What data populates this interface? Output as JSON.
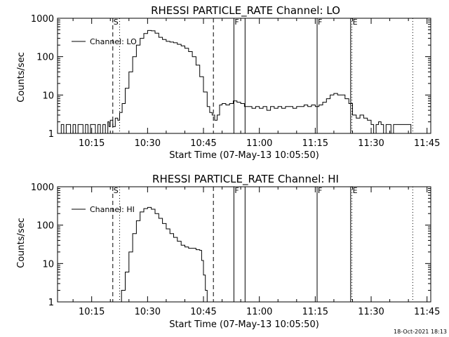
{
  "footer": {
    "timestamp": "18-Oct-2021 18:13"
  },
  "chart_data": [
    {
      "type": "line",
      "title": "RHESSI PARTICLE_RATE Channel: LO",
      "xlabel": "Start Time (07-May-13 10:05:50)",
      "ylabel": "Counts/sec",
      "yscale": "log",
      "xlim": [
        "10:05:50",
        "11:46:00"
      ],
      "ylim": [
        1,
        1000
      ],
      "xticks": [
        "10:15",
        "10:30",
        "10:45",
        "11:00",
        "11:15",
        "11:30",
        "11:45"
      ],
      "yticks": [
        "1",
        "10",
        "100",
        "1000"
      ],
      "legend": {
        "placement": "top-left",
        "entries": [
          "Channel: LO"
        ]
      },
      "markers": [
        {
          "time": "10:20:40",
          "style": "dashed",
          "label": "S"
        },
        {
          "time": "10:22:30",
          "style": "dotted",
          "label": ""
        },
        {
          "time": "10:47:40",
          "style": "dashed",
          "label": ""
        },
        {
          "time": "10:53:10",
          "style": "solid",
          "label": "F"
        },
        {
          "time": "10:56:10",
          "style": "solid",
          "label": ""
        },
        {
          "time": "11:15:30",
          "style": "solid",
          "label": "F"
        },
        {
          "time": "11:24:30",
          "style": "solid",
          "label": ""
        },
        {
          "time": "11:24:50",
          "style": "dotted",
          "label": "E"
        },
        {
          "time": "11:41:10",
          "style": "dotted",
          "label": ""
        }
      ],
      "series": [
        {
          "name": "Channel: LO",
          "points": [
            [
              "10:05:50",
              1
            ],
            [
              "10:06:50",
              1.7
            ],
            [
              "10:07:30",
              1
            ],
            [
              "10:08:10",
              1.7
            ],
            [
              "10:08:50",
              1.7
            ],
            [
              "10:09:20",
              1
            ],
            [
              "10:10:00",
              1.7
            ],
            [
              "10:10:40",
              1
            ],
            [
              "10:11:20",
              1.7
            ],
            [
              "10:12:00",
              1.7
            ],
            [
              "10:12:40",
              1
            ],
            [
              "10:13:20",
              1.7
            ],
            [
              "10:14:00",
              1
            ],
            [
              "10:14:40",
              1.7
            ],
            [
              "10:15:20",
              1.7
            ],
            [
              "10:16:00",
              1
            ],
            [
              "10:16:40",
              1.7
            ],
            [
              "10:17:20",
              1
            ],
            [
              "10:18:00",
              1.7
            ],
            [
              "10:18:40",
              1
            ],
            [
              "10:19:20",
              2
            ],
            [
              "10:19:40",
              1.5
            ],
            [
              "10:20:00",
              2.2
            ],
            [
              "10:20:40",
              1.5
            ],
            [
              "10:21:20",
              2.5
            ],
            [
              "10:22:00",
              2.2
            ],
            [
              "10:22:30",
              3.5
            ],
            [
              "10:23:10",
              6
            ],
            [
              "10:24:00",
              15
            ],
            [
              "10:25:00",
              40
            ],
            [
              "10:26:00",
              100
            ],
            [
              "10:27:00",
              200
            ],
            [
              "10:28:00",
              300
            ],
            [
              "10:29:00",
              400
            ],
            [
              "10:30:00",
              480
            ],
            [
              "10:31:00",
              470
            ],
            [
              "10:32:00",
              410
            ],
            [
              "10:33:00",
              320
            ],
            [
              "10:34:00",
              280
            ],
            [
              "10:35:00",
              250
            ],
            [
              "10:36:00",
              240
            ],
            [
              "10:37:00",
              230
            ],
            [
              "10:38:00",
              210
            ],
            [
              "10:39:00",
              190
            ],
            [
              "10:40:00",
              165
            ],
            [
              "10:41:00",
              135
            ],
            [
              "10:42:00",
              100
            ],
            [
              "10:43:00",
              60
            ],
            [
              "10:44:00",
              30
            ],
            [
              "10:45:00",
              12
            ],
            [
              "10:46:00",
              5
            ],
            [
              "10:46:40",
              3.5
            ],
            [
              "10:47:20",
              3
            ],
            [
              "10:48:00",
              2.2
            ],
            [
              "10:48:40",
              3
            ],
            [
              "10:49:20",
              5.5
            ],
            [
              "10:50:00",
              6
            ],
            [
              "10:51:00",
              5.5
            ],
            [
              "10:52:00",
              6
            ],
            [
              "10:53:00",
              7
            ],
            [
              "10:54:00",
              6.5
            ],
            [
              "10:55:00",
              6
            ],
            [
              "10:56:00",
              5
            ],
            [
              "10:57:00",
              5
            ],
            [
              "10:58:00",
              4.5
            ],
            [
              "10:59:00",
              5
            ],
            [
              "11:00:00",
              4.5
            ],
            [
              "11:01:00",
              5
            ],
            [
              "11:02:00",
              4
            ],
            [
              "11:03:00",
              5
            ],
            [
              "11:04:00",
              4.5
            ],
            [
              "11:05:00",
              5
            ],
            [
              "11:06:00",
              4.5
            ],
            [
              "11:07:00",
              5
            ],
            [
              "11:08:00",
              5
            ],
            [
              "11:09:00",
              4.5
            ],
            [
              "11:10:00",
              5
            ],
            [
              "11:11:00",
              5
            ],
            [
              "11:12:00",
              5.5
            ],
            [
              "11:13:00",
              5
            ],
            [
              "11:14:00",
              5.5
            ],
            [
              "11:15:00",
              5
            ],
            [
              "11:16:00",
              5.5
            ],
            [
              "11:17:00",
              6.5
            ],
            [
              "11:18:00",
              8
            ],
            [
              "11:19:00",
              10
            ],
            [
              "11:20:00",
              11
            ],
            [
              "11:21:00",
              10
            ],
            [
              "11:22:00",
              10
            ],
            [
              "11:23:00",
              8
            ],
            [
              "11:24:00",
              6
            ],
            [
              "11:25:00",
              3
            ],
            [
              "11:26:00",
              2.5
            ],
            [
              "11:27:00",
              3
            ],
            [
              "11:28:00",
              2.5
            ],
            [
              "11:29:00",
              2.2
            ],
            [
              "11:30:00",
              1.7
            ],
            [
              "11:30:40",
              1
            ],
            [
              "11:31:20",
              1.7
            ],
            [
              "11:32:00",
              2
            ],
            [
              "11:32:40",
              1.7
            ],
            [
              "11:33:20",
              1
            ],
            [
              "11:34:00",
              1.7
            ],
            [
              "11:34:40",
              1.7
            ],
            [
              "11:35:20",
              1
            ],
            [
              "11:36:00",
              1.7
            ],
            [
              "11:36:40",
              1.7
            ],
            [
              "11:37:20",
              1.7
            ],
            [
              "11:38:00",
              1.7
            ],
            [
              "11:38:40",
              1.7
            ],
            [
              "11:39:20",
              1.7
            ],
            [
              "11:40:00",
              1.7
            ],
            [
              "11:40:40",
              1
            ]
          ]
        }
      ]
    },
    {
      "type": "line",
      "title": "RHESSI PARTICLE_RATE Channel: HI",
      "xlabel": "Start Time (07-May-13 10:05:50)",
      "ylabel": "Counts/sec",
      "yscale": "log",
      "xlim": [
        "10:05:50",
        "11:46:00"
      ],
      "ylim": [
        1,
        1000
      ],
      "xticks": [
        "10:15",
        "10:30",
        "10:45",
        "11:00",
        "11:15",
        "11:30",
        "11:45"
      ],
      "yticks": [
        "1",
        "10",
        "100",
        "1000"
      ],
      "legend": {
        "placement": "top-left",
        "entries": [
          "Channel: HI"
        ]
      },
      "markers": [
        {
          "time": "10:20:40",
          "style": "dashed",
          "label": "S"
        },
        {
          "time": "10:22:30",
          "style": "dotted",
          "label": ""
        },
        {
          "time": "10:47:40",
          "style": "dashed",
          "label": ""
        },
        {
          "time": "10:53:10",
          "style": "solid",
          "label": "F"
        },
        {
          "time": "10:56:10",
          "style": "solid",
          "label": ""
        },
        {
          "time": "11:15:30",
          "style": "solid",
          "label": "F"
        },
        {
          "time": "11:24:30",
          "style": "solid",
          "label": ""
        },
        {
          "time": "11:24:50",
          "style": "dotted",
          "label": "E"
        },
        {
          "time": "11:41:10",
          "style": "dotted",
          "label": ""
        }
      ],
      "series": [
        {
          "name": "Channel: HI",
          "points": [
            [
              "10:22:30",
              1
            ],
            [
              "10:23:00",
              2
            ],
            [
              "10:24:00",
              6
            ],
            [
              "10:25:00",
              20
            ],
            [
              "10:26:00",
              60
            ],
            [
              "10:27:00",
              130
            ],
            [
              "10:28:00",
              220
            ],
            [
              "10:29:00",
              270
            ],
            [
              "10:30:00",
              290
            ],
            [
              "10:31:00",
              260
            ],
            [
              "10:32:00",
              200
            ],
            [
              "10:33:00",
              150
            ],
            [
              "10:34:00",
              110
            ],
            [
              "10:35:00",
              80
            ],
            [
              "10:36:00",
              60
            ],
            [
              "10:37:00",
              48
            ],
            [
              "10:38:00",
              38
            ],
            [
              "10:39:00",
              30
            ],
            [
              "10:40:00",
              27
            ],
            [
              "10:41:00",
              25
            ],
            [
              "10:42:00",
              25
            ],
            [
              "10:43:00",
              23
            ],
            [
              "10:44:00",
              22
            ],
            [
              "10:44:30",
              12
            ],
            [
              "10:45:00",
              5
            ],
            [
              "10:45:30",
              2
            ],
            [
              "10:46:00",
              1
            ]
          ]
        }
      ]
    }
  ]
}
